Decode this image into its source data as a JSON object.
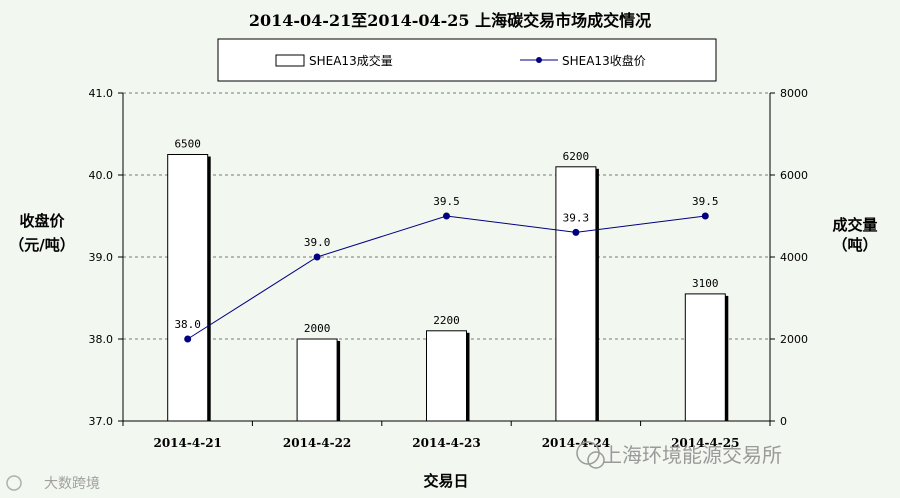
{
  "chart_data": {
    "type": "bar",
    "title": "2014-04-21至2014-04-25  上海碳交易市场成交情况",
    "categories": [
      "2014-4-21",
      "2014-4-22",
      "2014-4-23",
      "2014-4-24",
      "2014-4-25"
    ],
    "xlabel": "交易日",
    "ylabel_left": [
      "收盘价",
      "（元/吨）"
    ],
    "ylabel_right": [
      "成交量",
      "（吨）"
    ],
    "ylim_left": [
      37.0,
      41.0
    ],
    "ylim_right": [
      0,
      8000
    ],
    "left_ticks": [
      "37.0",
      "38.0",
      "39.0",
      "40.0",
      "41.0"
    ],
    "right_ticks": [
      "0",
      "2000",
      "4000",
      "6000",
      "8000"
    ],
    "grid": true,
    "legend_position": "top-center",
    "series": [
      {
        "name": "SHEA13成交量",
        "type": "bar",
        "axis": "right",
        "values": [
          6500,
          2000,
          2200,
          6200,
          3100
        ],
        "labels": [
          "6500",
          "2000",
          "2200",
          "6200",
          "3100"
        ],
        "color": "#ffffff"
      },
      {
        "name": "SHEA13收盘价",
        "type": "line",
        "axis": "left",
        "values": [
          38.0,
          39.0,
          39.5,
          39.3,
          39.5
        ],
        "labels": [
          "38.0",
          "39.0",
          "39.5",
          "39.3",
          "39.5"
        ],
        "color": "#000080"
      }
    ]
  },
  "watermarks": {
    "left": "大数跨境",
    "right": "上海环境能源交易所"
  }
}
